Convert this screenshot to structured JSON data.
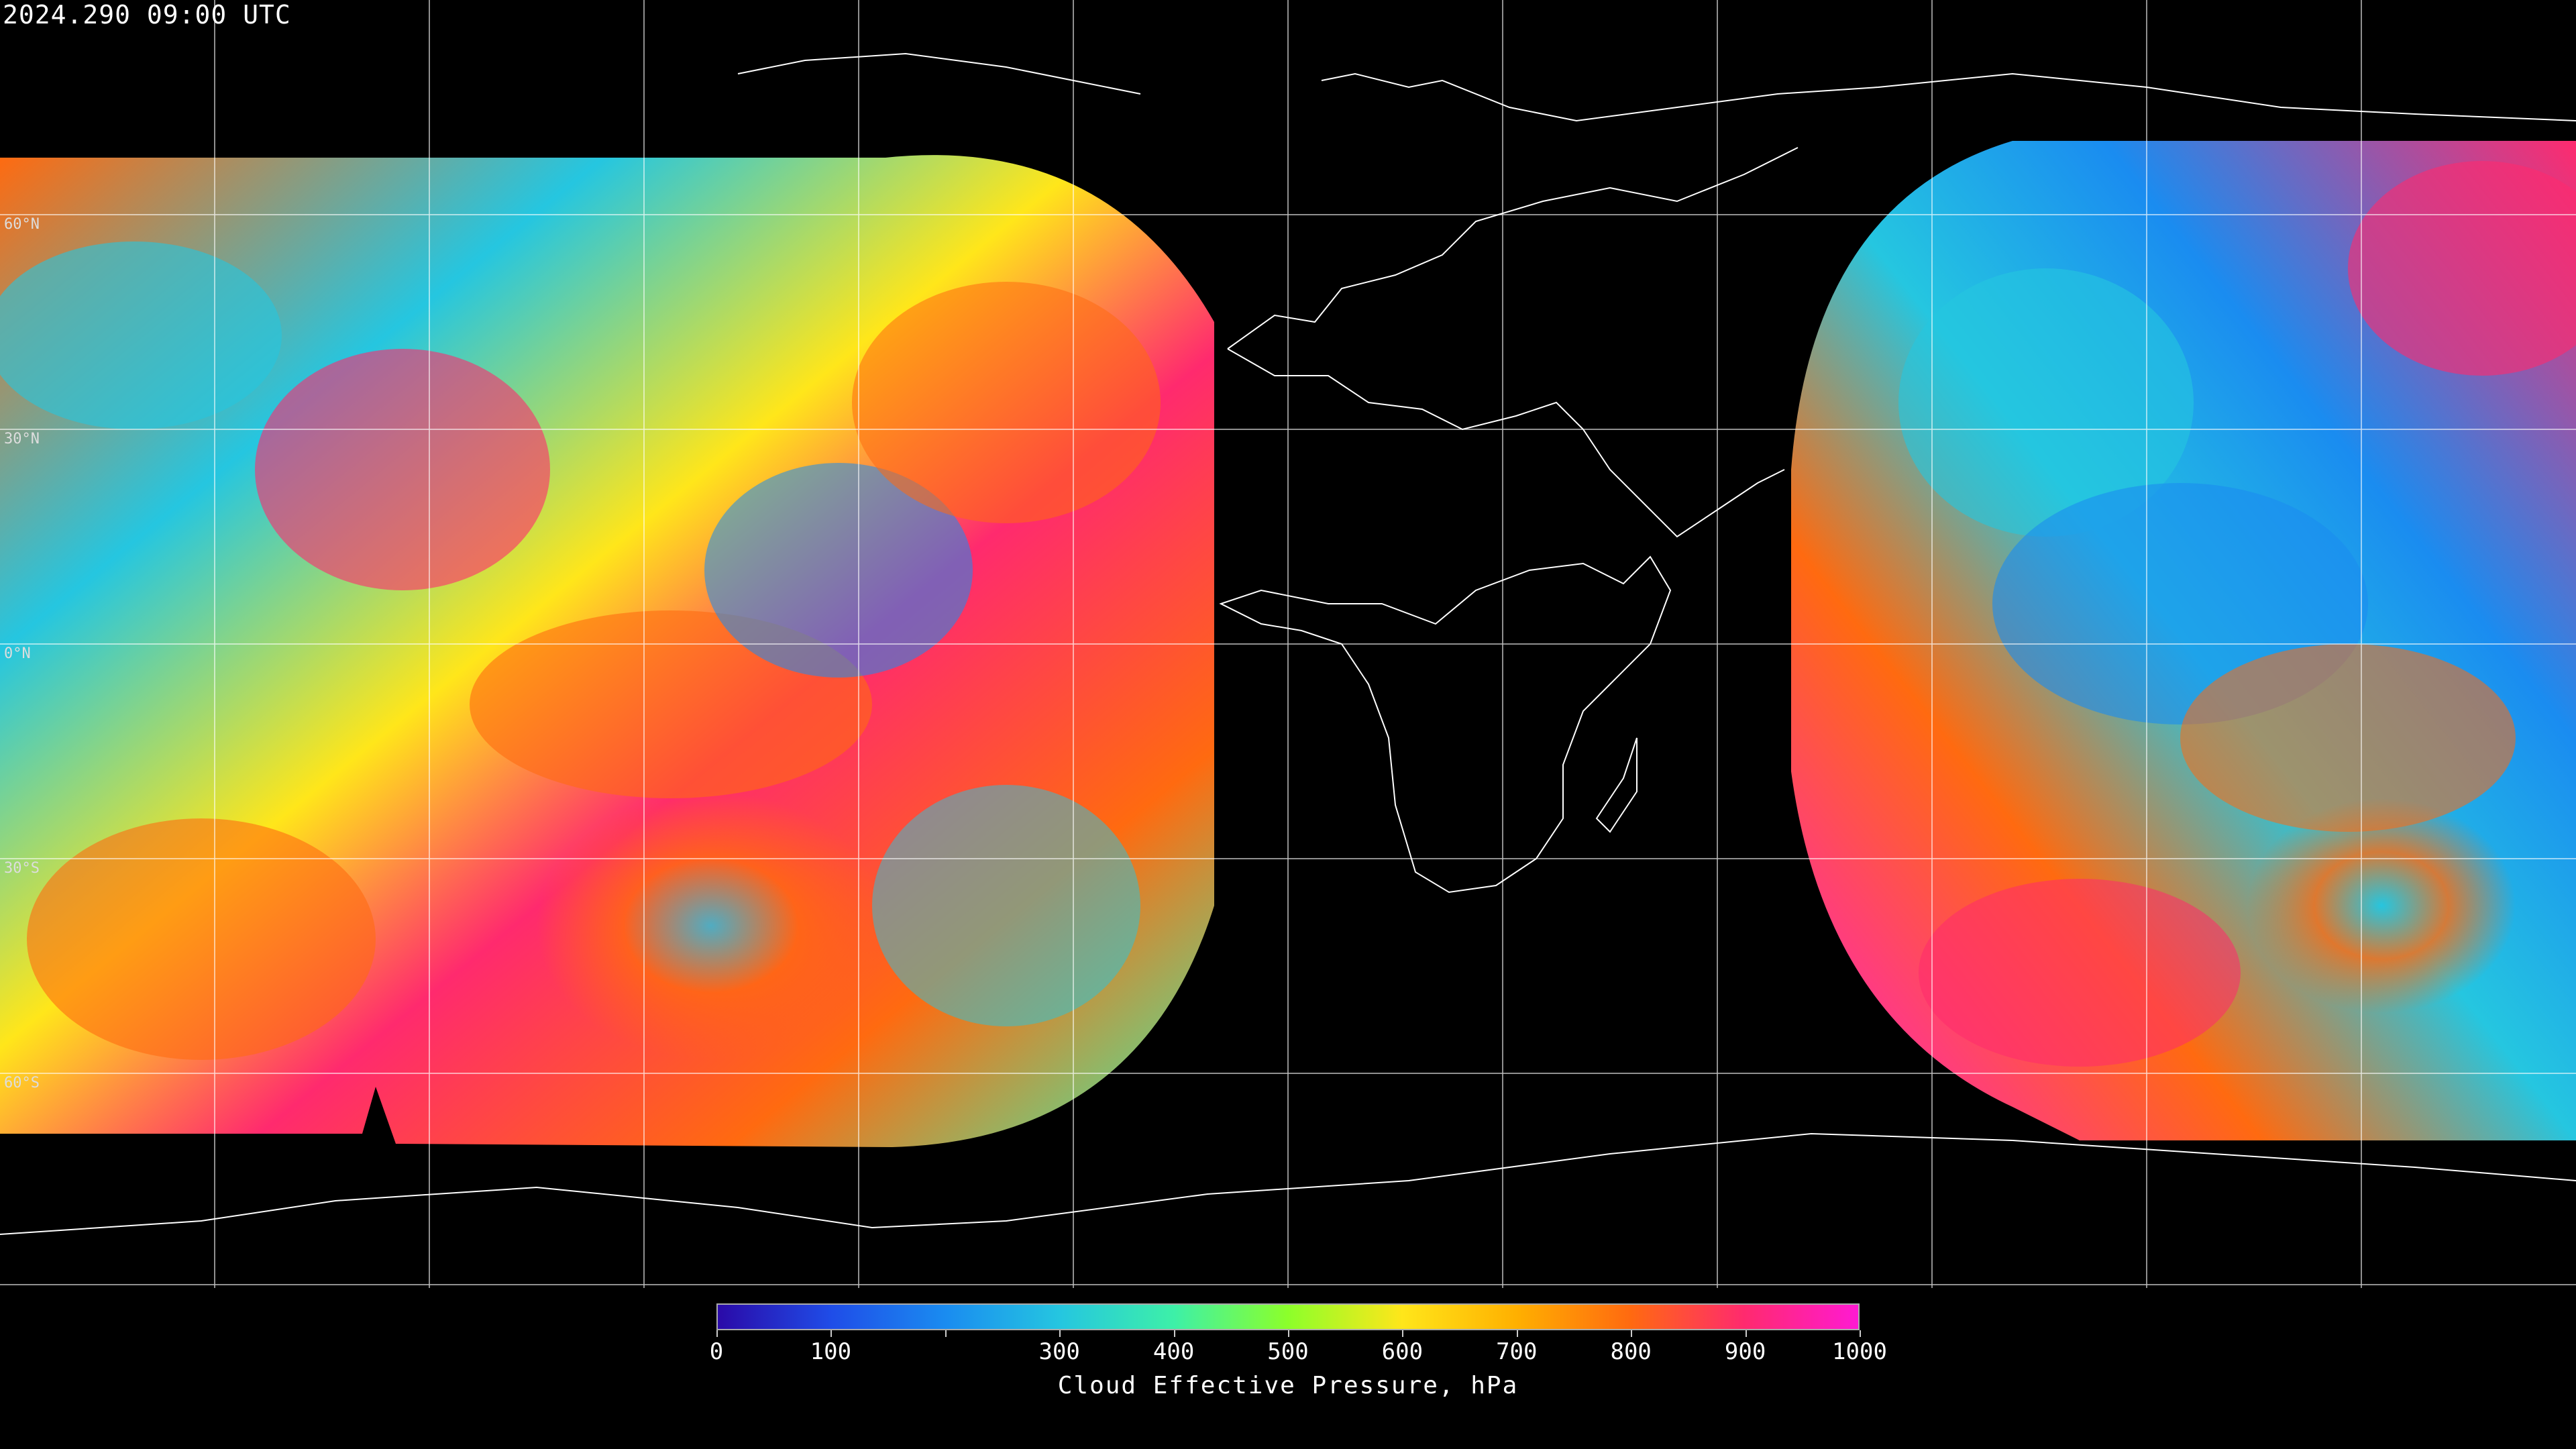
{
  "header": {
    "timestamp": "2024.290 09:00 UTC"
  },
  "latitude_labels": [
    {
      "text": "60°N",
      "lat": 60
    },
    {
      "text": "30°N",
      "lat": 30
    },
    {
      "text": "0°N",
      "lat": 0
    },
    {
      "text": "30°S",
      "lat": -30
    },
    {
      "text": "60°S",
      "lat": -60
    }
  ],
  "colorbar": {
    "title": "Cloud Effective Pressure, hPa",
    "min": 0,
    "max": 1000,
    "labels": [
      "0",
      "100",
      "300",
      "400",
      "500",
      "600",
      "700",
      "800",
      "900",
      "1000"
    ],
    "label_values": [
      0,
      100,
      300,
      400,
      500,
      600,
      700,
      800,
      900,
      1000
    ],
    "minor_tick_values": [
      0,
      100,
      200,
      300,
      400,
      500,
      600,
      700,
      800,
      900,
      1000
    ],
    "colors": [
      "#2a0aa8",
      "#1f4de8",
      "#1a8cf0",
      "#25c6e0",
      "#3df0a8",
      "#8cff2a",
      "#ffe61a",
      "#ffb000",
      "#ff6a10",
      "#ff2a6e",
      "#ff1ad2"
    ]
  },
  "map": {
    "background": "#000000",
    "graticule_color": "#ffffff",
    "coastline_color": "#ffffff",
    "coverage_regions": [
      "west-disk",
      "east-disk"
    ]
  }
}
